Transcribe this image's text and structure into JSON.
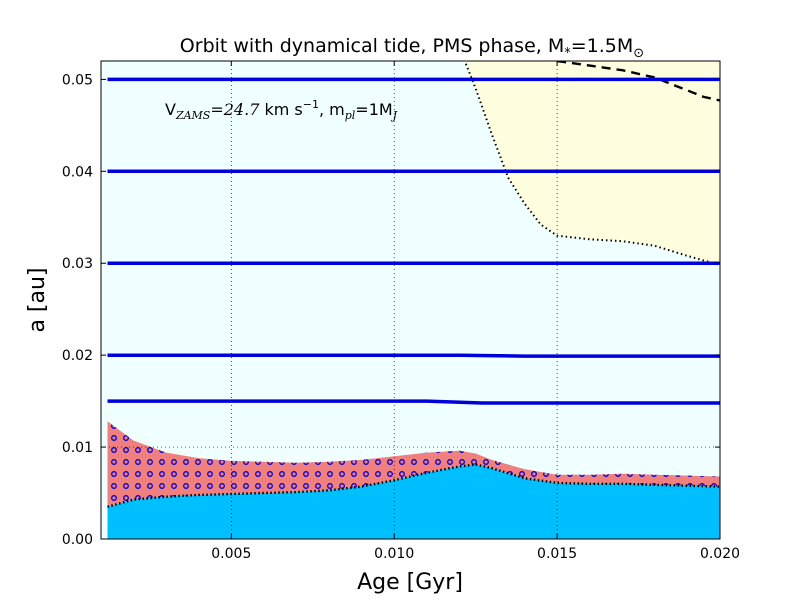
{
  "chart_data": {
    "type": "area",
    "title": "Orbit with dynamical tide, PMS phase, M",
    "title_sub": "*",
    "title_eq": "=1.5M",
    "title_sun": "⊙",
    "xlabel": "Age [Gyr]",
    "ylabel": "a [au]",
    "xlim": [
      0.001,
      0.02
    ],
    "ylim": [
      0.0,
      0.052
    ],
    "grid": true,
    "x_ticks": [
      0.005,
      0.01,
      0.015,
      0.02
    ],
    "x_tick_labels": [
      "0.005",
      "0.010",
      "0.015",
      "0.020"
    ],
    "y_ticks": [
      0.0,
      0.01,
      0.02,
      0.03,
      0.04,
      0.05
    ],
    "y_tick_labels": [
      "0.00",
      "0.01",
      "0.02",
      "0.03",
      "0.04",
      "0.05"
    ],
    "annotation": {
      "v": "V",
      "v_sub": "ZAMS",
      "v_eq": "=24.7",
      "v_unit": " km s",
      "v_exp": "−1",
      "m_text": ", m",
      "m_sub": "pl",
      "m_eq": "=1M",
      "m_sub2": "J"
    },
    "colors": {
      "background": "#f0ffff",
      "star_region": "#00bfff",
      "pink_region": "#f08080",
      "yellow_region": "#ffffe0",
      "orbit_line": "#0000dd",
      "circle_marker": "#0000cc",
      "dotted_line": "#000000",
      "dashed_line": "#000000"
    },
    "orbits": [
      {
        "name": "a0=0.05",
        "x": [
          0.0012,
          0.02
        ],
        "y": [
          0.05,
          0.05
        ]
      },
      {
        "name": "a0=0.04",
        "x": [
          0.0012,
          0.02
        ],
        "y": [
          0.04,
          0.04
        ]
      },
      {
        "name": "a0=0.03",
        "x": [
          0.0012,
          0.02
        ],
        "y": [
          0.03,
          0.03
        ]
      },
      {
        "name": "a0=0.02",
        "x": [
          0.0012,
          0.012,
          0.014,
          0.02
        ],
        "y": [
          0.02,
          0.02,
          0.0199,
          0.0199
        ]
      },
      {
        "name": "a0=0.015",
        "x": [
          0.0012,
          0.011,
          0.0127,
          0.016,
          0.02
        ],
        "y": [
          0.015,
          0.015,
          0.0148,
          0.0148,
          0.0148
        ]
      }
    ],
    "star_radius_x": [
      0.0012,
      0.002,
      0.003,
      0.004,
      0.005,
      0.006,
      0.007,
      0.008,
      0.009,
      0.01,
      0.011,
      0.012,
      0.0125,
      0.013,
      0.014,
      0.015,
      0.016,
      0.017,
      0.018,
      0.019,
      0.02
    ],
    "star_radius_y": [
      0.0035,
      0.0043,
      0.0046,
      0.0048,
      0.0049,
      0.005,
      0.0051,
      0.0053,
      0.0057,
      0.0064,
      0.0072,
      0.0079,
      0.0081,
      0.0077,
      0.0066,
      0.0061,
      0.006,
      0.006,
      0.0059,
      0.0058,
      0.0057
    ],
    "pink_upper_x": [
      0.0012,
      0.002,
      0.003,
      0.004,
      0.005,
      0.006,
      0.007,
      0.008,
      0.009,
      0.01,
      0.011,
      0.012,
      0.0125,
      0.013,
      0.014,
      0.015,
      0.016,
      0.017,
      0.018,
      0.019,
      0.02
    ],
    "pink_upper_y": [
      0.0128,
      0.0107,
      0.0094,
      0.0088,
      0.0085,
      0.0084,
      0.0083,
      0.0084,
      0.0086,
      0.009,
      0.0094,
      0.0096,
      0.0093,
      0.0086,
      0.0076,
      0.007,
      0.007,
      0.0071,
      0.007,
      0.0069,
      0.0068
    ],
    "yellow_x": [
      0.0122,
      0.0125,
      0.013,
      0.0135,
      0.014,
      0.0145,
      0.015,
      0.016,
      0.017,
      0.018,
      0.019,
      0.02
    ],
    "yellow_y": [
      0.0517,
      0.049,
      0.044,
      0.0393,
      0.0365,
      0.0342,
      0.033,
      0.0326,
      0.0324,
      0.0319,
      0.0308,
      0.0298
    ],
    "dashed_x": [
      0.015,
      0.016,
      0.017,
      0.018,
      0.0185,
      0.019,
      0.0195,
      0.02
    ],
    "dashed_y": [
      0.052,
      0.0515,
      0.051,
      0.0502,
      0.0495,
      0.0488,
      0.0481,
      0.0477
    ]
  }
}
